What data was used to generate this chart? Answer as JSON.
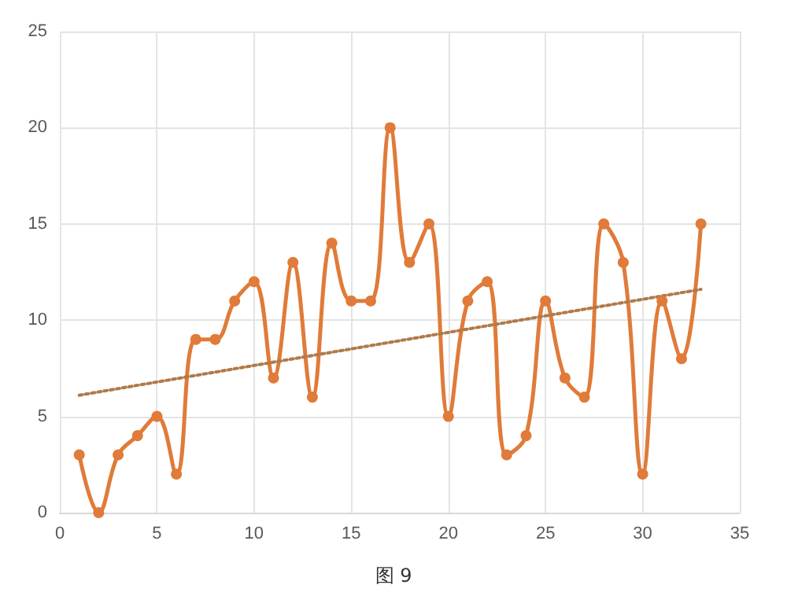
{
  "chart_data": {
    "type": "line",
    "annotations": [
      "图 9"
    ],
    "x": [
      1,
      2,
      3,
      4,
      5,
      6,
      7,
      8,
      9,
      10,
      11,
      12,
      13,
      14,
      15,
      16,
      17,
      18,
      19,
      20,
      21,
      22,
      23,
      24,
      25,
      26,
      27,
      28,
      29,
      30,
      31,
      32,
      33
    ],
    "series": [
      {
        "color": "#e07b39",
        "marker": "circle",
        "line_style": "solid",
        "values": [
          3,
          0,
          3,
          4,
          5,
          2,
          9,
          9,
          11,
          12,
          7,
          13,
          6,
          14,
          11,
          11,
          20,
          13,
          15,
          5,
          11,
          12,
          3,
          4,
          11,
          7,
          6,
          15,
          13,
          2,
          11,
          8,
          15
        ]
      },
      {
        "type": "line",
        "color": "#b07a4a",
        "marker": "none",
        "line_style": "dotted",
        "x": [
          1,
          33
        ],
        "values": [
          6.1,
          11.6
        ]
      }
    ],
    "xlim": [
      0,
      35
    ],
    "xticks": [
      0,
      5,
      10,
      15,
      20,
      25,
      30,
      35
    ],
    "ylim": [
      0,
      25
    ],
    "yticks": [
      0,
      5,
      10,
      15,
      20,
      25
    ],
    "grid": true
  }
}
